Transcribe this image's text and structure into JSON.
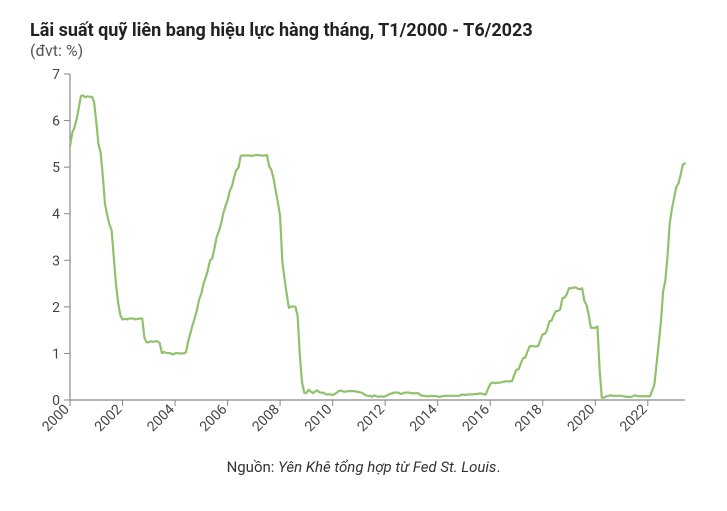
{
  "chart": {
    "type": "line",
    "title": "Lãi suất quỹ liên bang hiệu lực hàng tháng, T1/2000 - T6/2023",
    "subtitle": "(đvt: %)",
    "source_prefix": "Nguồn: ",
    "source_name": "Yên Khê tổng hợp từ Fed St. Louis",
    "source_suffix": ".",
    "title_fontsize": 18,
    "subtitle_fontsize": 16,
    "source_fontsize": 15,
    "tick_fontsize": 14,
    "line_color": "#8fc26b",
    "line_width": 2.2,
    "axis_color": "#888888",
    "background_color": "#ffffff",
    "text_color": "#222222",
    "x": {
      "min_index": 0,
      "max_index": 281,
      "ticks": [
        {
          "index": 0,
          "label": "2000"
        },
        {
          "index": 24,
          "label": "2002"
        },
        {
          "index": 48,
          "label": "2004"
        },
        {
          "index": 72,
          "label": "2006"
        },
        {
          "index": 96,
          "label": "2008"
        },
        {
          "index": 120,
          "label": "2010"
        },
        {
          "index": 144,
          "label": "2012"
        },
        {
          "index": 168,
          "label": "2014"
        },
        {
          "index": 192,
          "label": "2016"
        },
        {
          "index": 216,
          "label": "2018"
        },
        {
          "index": 240,
          "label": "2020"
        },
        {
          "index": 264,
          "label": "2022"
        }
      ]
    },
    "y": {
      "min": 0,
      "max": 7,
      "ticks": [
        {
          "v": 0,
          "label": "0"
        },
        {
          "v": 1,
          "label": "1"
        },
        {
          "v": 2,
          "label": "2"
        },
        {
          "v": 3,
          "label": "3"
        },
        {
          "v": 4,
          "label": "4"
        },
        {
          "v": 5,
          "label": "5"
        },
        {
          "v": 6,
          "label": "6"
        },
        {
          "v": 7,
          "label": "7"
        }
      ]
    },
    "series": {
      "name": "fed_funds_rate",
      "values": [
        5.45,
        5.73,
        5.85,
        6.02,
        6.27,
        6.53,
        6.54,
        6.5,
        6.52,
        6.51,
        6.51,
        6.4,
        5.98,
        5.49,
        5.31,
        4.8,
        4.21,
        3.97,
        3.77,
        3.65,
        3.07,
        2.49,
        2.09,
        1.82,
        1.73,
        1.74,
        1.73,
        1.75,
        1.75,
        1.75,
        1.73,
        1.74,
        1.75,
        1.75,
        1.34,
        1.24,
        1.24,
        1.26,
        1.25,
        1.26,
        1.26,
        1.22,
        1.01,
        1.03,
        1.01,
        1.01,
        1.0,
        0.98,
        1.0,
        1.01,
        1.0,
        1.0,
        1.0,
        1.03,
        1.26,
        1.43,
        1.61,
        1.76,
        1.93,
        2.16,
        2.28,
        2.5,
        2.63,
        2.79,
        3.0,
        3.04,
        3.26,
        3.5,
        3.62,
        3.78,
        4.0,
        4.16,
        4.29,
        4.49,
        4.59,
        4.79,
        4.94,
        4.99,
        5.24,
        5.25,
        5.25,
        5.25,
        5.25,
        5.24,
        5.25,
        5.26,
        5.26,
        5.25,
        5.25,
        5.25,
        5.26,
        5.02,
        4.94,
        4.76,
        4.49,
        4.24,
        3.94,
        2.98,
        2.61,
        2.28,
        1.98,
        2.0,
        2.01,
        2.0,
        1.81,
        0.97,
        0.39,
        0.16,
        0.15,
        0.22,
        0.18,
        0.15,
        0.18,
        0.21,
        0.16,
        0.16,
        0.15,
        0.12,
        0.12,
        0.12,
        0.11,
        0.13,
        0.16,
        0.2,
        0.2,
        0.18,
        0.18,
        0.19,
        0.19,
        0.19,
        0.19,
        0.18,
        0.17,
        0.16,
        0.14,
        0.1,
        0.09,
        0.09,
        0.07,
        0.1,
        0.08,
        0.07,
        0.08,
        0.07,
        0.08,
        0.1,
        0.13,
        0.14,
        0.16,
        0.16,
        0.16,
        0.13,
        0.14,
        0.16,
        0.16,
        0.16,
        0.14,
        0.15,
        0.14,
        0.15,
        0.11,
        0.09,
        0.09,
        0.08,
        0.08,
        0.09,
        0.08,
        0.09,
        0.07,
        0.07,
        0.08,
        0.09,
        0.09,
        0.09,
        0.09,
        0.09,
        0.09,
        0.09,
        0.09,
        0.12,
        0.11,
        0.11,
        0.12,
        0.12,
        0.12,
        0.13,
        0.13,
        0.14,
        0.14,
        0.12,
        0.12,
        0.24,
        0.34,
        0.38,
        0.36,
        0.37,
        0.37,
        0.38,
        0.39,
        0.4,
        0.4,
        0.4,
        0.41,
        0.54,
        0.65,
        0.66,
        0.79,
        0.9,
        0.91,
        1.04,
        1.15,
        1.16,
        1.15,
        1.15,
        1.16,
        1.3,
        1.41,
        1.42,
        1.51,
        1.69,
        1.7,
        1.82,
        1.91,
        1.91,
        1.95,
        2.19,
        2.2,
        2.27,
        2.4,
        2.4,
        2.41,
        2.42,
        2.39,
        2.38,
        2.4,
        2.13,
        2.04,
        1.83,
        1.55,
        1.55,
        1.55,
        1.58,
        0.65,
        0.05,
        0.05,
        0.08,
        0.09,
        0.1,
        0.09,
        0.09,
        0.09,
        0.09,
        0.09,
        0.08,
        0.07,
        0.07,
        0.06,
        0.08,
        0.1,
        0.09,
        0.08,
        0.08,
        0.08,
        0.08,
        0.08,
        0.08,
        0.2,
        0.33,
        0.77,
        1.21,
        1.68,
        2.33,
        2.56,
        3.08,
        3.78,
        4.1,
        4.33,
        4.57,
        4.65,
        4.83,
        5.06,
        5.08
      ]
    }
  }
}
